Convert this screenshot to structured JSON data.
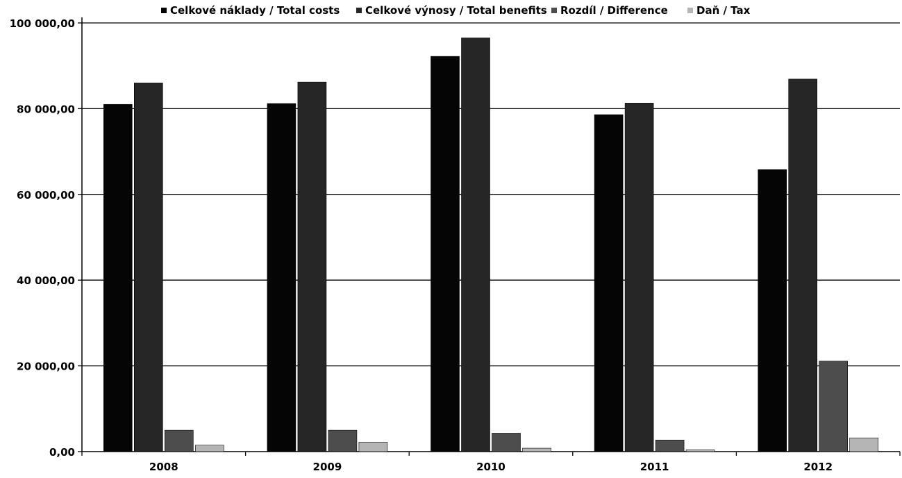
{
  "chart_data": {
    "type": "bar",
    "categories": [
      "2008",
      "2009",
      "2010",
      "2011",
      "2012"
    ],
    "series": [
      {
        "name": "Celkové náklady / Total costs",
        "values": [
          81000,
          81200,
          92200,
          78600,
          65800
        ],
        "color": "#050505"
      },
      {
        "name": "Celkové výnosy / Total benefits",
        "values": [
          86000,
          86200,
          96500,
          81300,
          86900
        ],
        "color": "#262626"
      },
      {
        "name": "Rozdíl / Difference",
        "values": [
          5000,
          5000,
          4300,
          2700,
          21100
        ],
        "color": "#4d4d4d"
      },
      {
        "name": "Daň / Tax",
        "values": [
          1500,
          2200,
          800,
          400,
          3200
        ],
        "color": "#b5b5b5"
      }
    ],
    "ylim": [
      0,
      100000
    ],
    "yticks": [
      0,
      20000,
      40000,
      60000,
      80000,
      100000
    ],
    "ytick_labels": [
      "0,00",
      "20 000,00",
      "40 000,00",
      "60 000,00",
      "80 000,00",
      "100 000,00"
    ],
    "grid": true,
    "legend_position": "top"
  }
}
